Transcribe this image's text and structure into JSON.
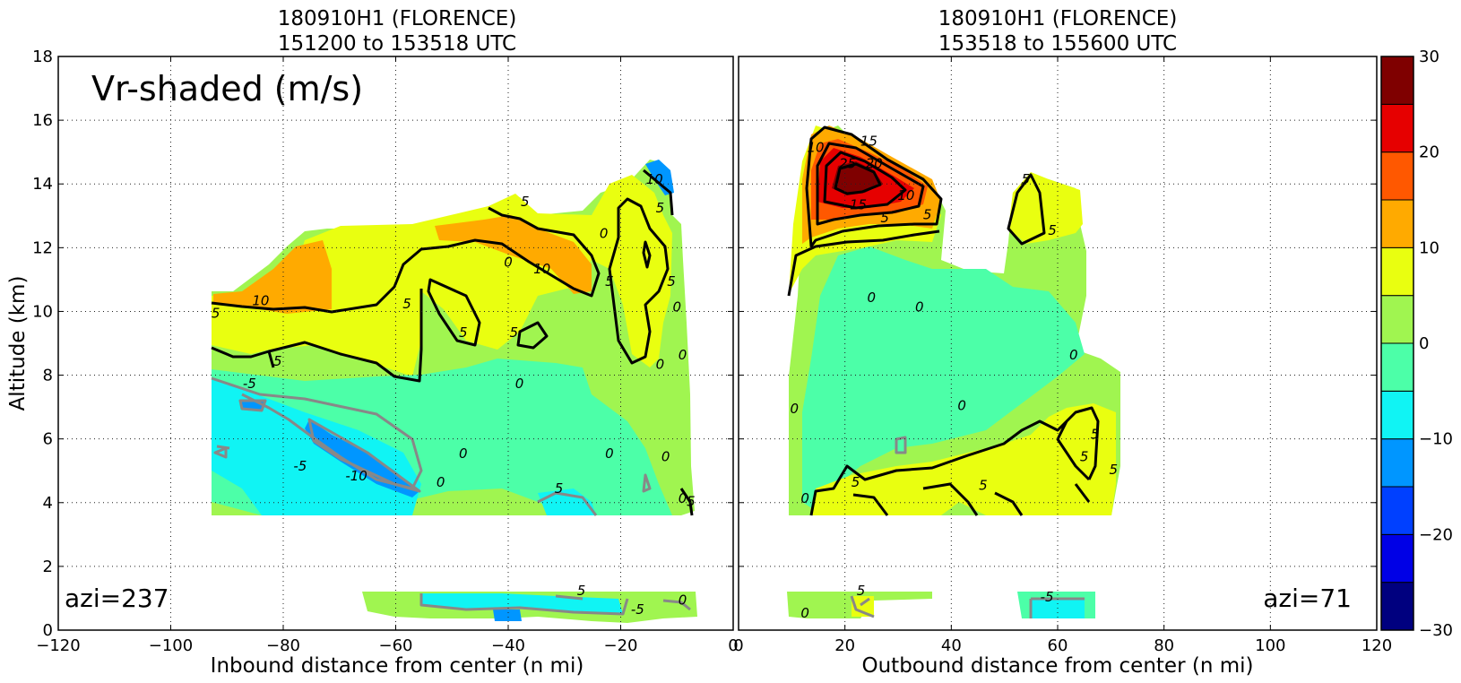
{
  "figure": {
    "annotation": "Vr-shaded (m/s)",
    "ylabel": "Altitude (km)",
    "colorbar": {
      "ticks": [
        30,
        20,
        10,
        0,
        -10,
        -20,
        -30
      ],
      "bins": [
        -30,
        -25,
        -20,
        -15,
        -10,
        -5,
        0,
        5,
        10,
        15,
        20,
        25,
        30
      ],
      "colors": [
        "#00007f",
        "#0000e6",
        "#0040ff",
        "#0096ff",
        "#10f4f4",
        "#4cffa8",
        "#a0f550",
        "#e9ff10",
        "#ffaa00",
        "#ff5800",
        "#e60000",
        "#7f0000"
      ]
    }
  },
  "chart_data": [
    {
      "type": "heatmap",
      "panel": "left",
      "title": "180910H1 (FLORENCE)",
      "subtitle": "151200 to 153518 UTC",
      "xlabel": "Inbound distance from center (n mi)",
      "ylabel": "Altitude (km)",
      "xlim": [
        -120,
        0
      ],
      "ylim": [
        0,
        18
      ],
      "xticks": [
        "−120",
        "−100",
        "−80",
        "−60",
        "−40",
        "−20",
        "0"
      ],
      "yticks": [
        "0",
        "2",
        "4",
        "6",
        "8",
        "10",
        "12",
        "14",
        "16",
        "18"
      ],
      "grid": true,
      "azimuth_label": "azi=237",
      "contour_labels": [
        {
          "text": "5",
          "x": -92,
          "y": 9.8
        },
        {
          "text": "10",
          "x": -84,
          "y": 10.2
        },
        {
          "text": "5",
          "x": -81,
          "y": 8.3
        },
        {
          "text": "5",
          "x": -58,
          "y": 10.1
        },
        {
          "text": "5",
          "x": -48,
          "y": 9.2
        },
        {
          "text": "5",
          "x": -39,
          "y": 9.2
        },
        {
          "text": "0",
          "x": -40,
          "y": 11.4
        },
        {
          "text": "10",
          "x": -34,
          "y": 11.2
        },
        {
          "text": "5",
          "x": -37,
          "y": 13.3
        },
        {
          "text": "0",
          "x": -23,
          "y": 12.3
        },
        {
          "text": "5",
          "x": -22,
          "y": 10.8
        },
        {
          "text": "10",
          "x": -14,
          "y": 14.0
        },
        {
          "text": "5",
          "x": -13,
          "y": 13.1
        },
        {
          "text": "5",
          "x": -11,
          "y": 10.8
        },
        {
          "text": "0",
          "x": -10,
          "y": 10.0
        },
        {
          "text": "0",
          "x": -9,
          "y": 8.5
        },
        {
          "text": "0",
          "x": -13,
          "y": 8.2
        },
        {
          "text": "0",
          "x": -38,
          "y": 7.6
        },
        {
          "text": "-5",
          "x": -86,
          "y": 7.6
        },
        {
          "text": "-5",
          "x": -77,
          "y": 5.0
        },
        {
          "text": "-10",
          "x": -67,
          "y": 4.7
        },
        {
          "text": "0",
          "x": -48,
          "y": 5.4
        },
        {
          "text": "0",
          "x": -52,
          "y": 4.5
        },
        {
          "text": "0",
          "x": -22,
          "y": 5.4
        },
        {
          "text": "0",
          "x": -12,
          "y": 5.3
        },
        {
          "text": "5",
          "x": -31,
          "y": 4.3
        },
        {
          "text": "0",
          "x": -9,
          "y": 4.0
        },
        {
          "text": "5",
          "x": -7.5,
          "y": 3.9
        },
        {
          "text": "5",
          "x": -27,
          "y": 1.1
        },
        {
          "text": "-5",
          "x": -17,
          "y": 0.5
        },
        {
          "text": "0",
          "x": -9,
          "y": 0.8
        }
      ]
    },
    {
      "type": "heatmap",
      "panel": "right",
      "title": "180910H1 (FLORENCE)",
      "subtitle": "153518 to 155600 UTC",
      "xlabel": "Outbound distance from center (n mi)",
      "xlim": [
        0,
        120
      ],
      "ylim": [
        0,
        18
      ],
      "xticks": [
        "0",
        "20",
        "40",
        "60",
        "80",
        "100",
        "120"
      ],
      "grid": true,
      "azimuth_label": "azi=71",
      "contour_labels": [
        {
          "text": "10",
          "x": 14.5,
          "y": 15.0
        },
        {
          "text": "15",
          "x": 24.5,
          "y": 15.2
        },
        {
          "text": "25",
          "x": 20.5,
          "y": 14.5
        },
        {
          "text": "20",
          "x": 25.5,
          "y": 14.5
        },
        {
          "text": "15",
          "x": 22.5,
          "y": 13.2
        },
        {
          "text": "10",
          "x": 31.5,
          "y": 13.5
        },
        {
          "text": "5",
          "x": 27.5,
          "y": 12.8
        },
        {
          "text": "5",
          "x": 35.5,
          "y": 12.9
        },
        {
          "text": "5",
          "x": 54,
          "y": 14.0
        },
        {
          "text": "5",
          "x": 59,
          "y": 12.4
        },
        {
          "text": "0",
          "x": 25,
          "y": 10.3
        },
        {
          "text": "0",
          "x": 34,
          "y": 10.0
        },
        {
          "text": "0",
          "x": 63,
          "y": 8.5
        },
        {
          "text": "0",
          "x": 42,
          "y": 6.9
        },
        {
          "text": "0",
          "x": 10.5,
          "y": 6.8
        },
        {
          "text": "5",
          "x": 67,
          "y": 6.0
        },
        {
          "text": "5",
          "x": 65,
          "y": 5.3
        },
        {
          "text": "5",
          "x": 70.5,
          "y": 4.9
        },
        {
          "text": "5",
          "x": 46,
          "y": 4.4
        },
        {
          "text": "5",
          "x": 22,
          "y": 4.5
        },
        {
          "text": "0",
          "x": 12.5,
          "y": 4.0
        },
        {
          "text": "5",
          "x": 23,
          "y": 1.1
        },
        {
          "text": "0",
          "x": 12.5,
          "y": 0.4
        },
        {
          "text": "-5",
          "x": 58,
          "y": 0.9
        }
      ]
    }
  ]
}
